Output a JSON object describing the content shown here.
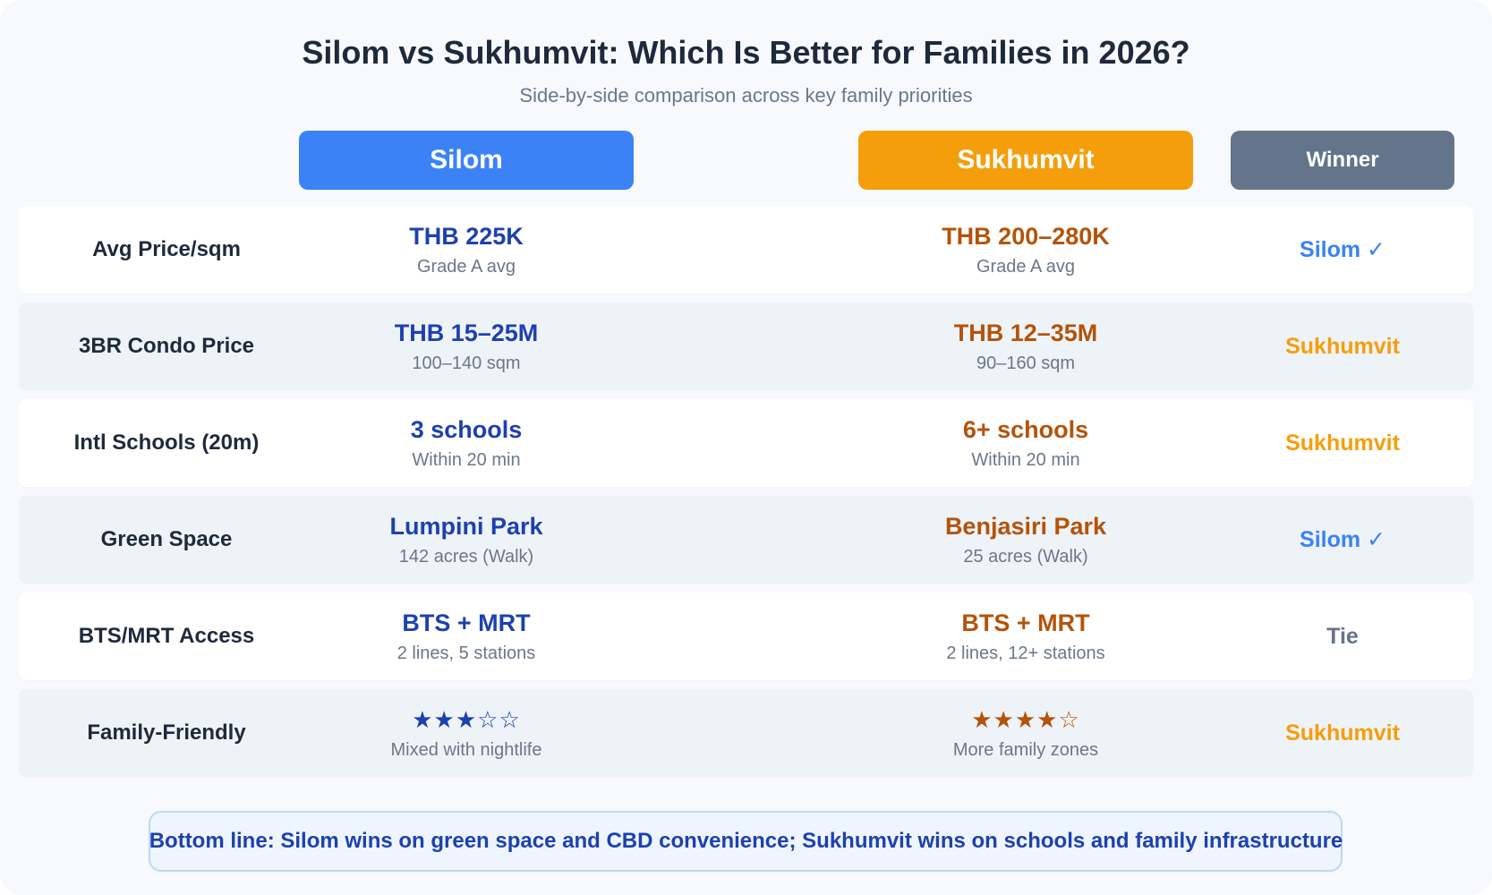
{
  "title": "Silom vs Sukhumvit: Which Is Better for Families in 2026?",
  "subtitle": "Side-by-side comparison across key family priorities",
  "columns": {
    "silom": "Silom",
    "sukhumvit": "Sukhumvit",
    "winner": "Winner"
  },
  "rows": [
    {
      "label": "Avg Price/sqm",
      "silom_main": "THB 225K",
      "silom_sub": "Grade A avg",
      "sukh_main": "THB 200–280K",
      "sukh_sub": "Grade A avg",
      "winner": "Silom ✓"
    },
    {
      "label": "3BR Condo Price",
      "silom_main": "THB 15–25M",
      "silom_sub": "100–140 sqm",
      "sukh_main": "THB 12–35M",
      "sukh_sub": "90–160 sqm",
      "winner": "Sukhumvit"
    },
    {
      "label": "Intl Schools (20m)",
      "silom_main": "3 schools",
      "silom_sub": "Within 20 min",
      "sukh_main": "6+ schools",
      "sukh_sub": "Within 20 min",
      "winner": "Sukhumvit"
    },
    {
      "label": "Green Space",
      "silom_main": "Lumpini Park",
      "silom_sub": "142 acres (Walk)",
      "sukh_main": "Benjasiri Park",
      "sukh_sub": "25 acres (Walk)",
      "winner": "Silom ✓"
    },
    {
      "label": "BTS/MRT Access",
      "silom_main": "BTS + MRT",
      "silom_sub": "2 lines, 5 stations",
      "sukh_main": "BTS + MRT",
      "sukh_sub": "2 lines, 12+ stations",
      "winner": "Tie"
    },
    {
      "label": "Family-Friendly",
      "silom_main": "★★★☆☆",
      "silom_sub": "Mixed with nightlife",
      "sukh_main": "★★★★☆",
      "sukh_sub": "More family zones",
      "winner": "Sukhumvit"
    }
  ],
  "family_friendly_rating": {
    "silom_stars": 3,
    "sukhumvit_stars": 4,
    "max_stars": 5
  },
  "bottom_line": "Bottom line: Silom wins on green space and CBD convenience; Sukhumvit wins on schools and family infrastructure",
  "colors": {
    "silom": "#3b82f6",
    "sukhumvit": "#f59e0b",
    "winner_header": "#64748b",
    "silom_text": "#1e40af",
    "sukhumvit_text": "#b45309"
  }
}
